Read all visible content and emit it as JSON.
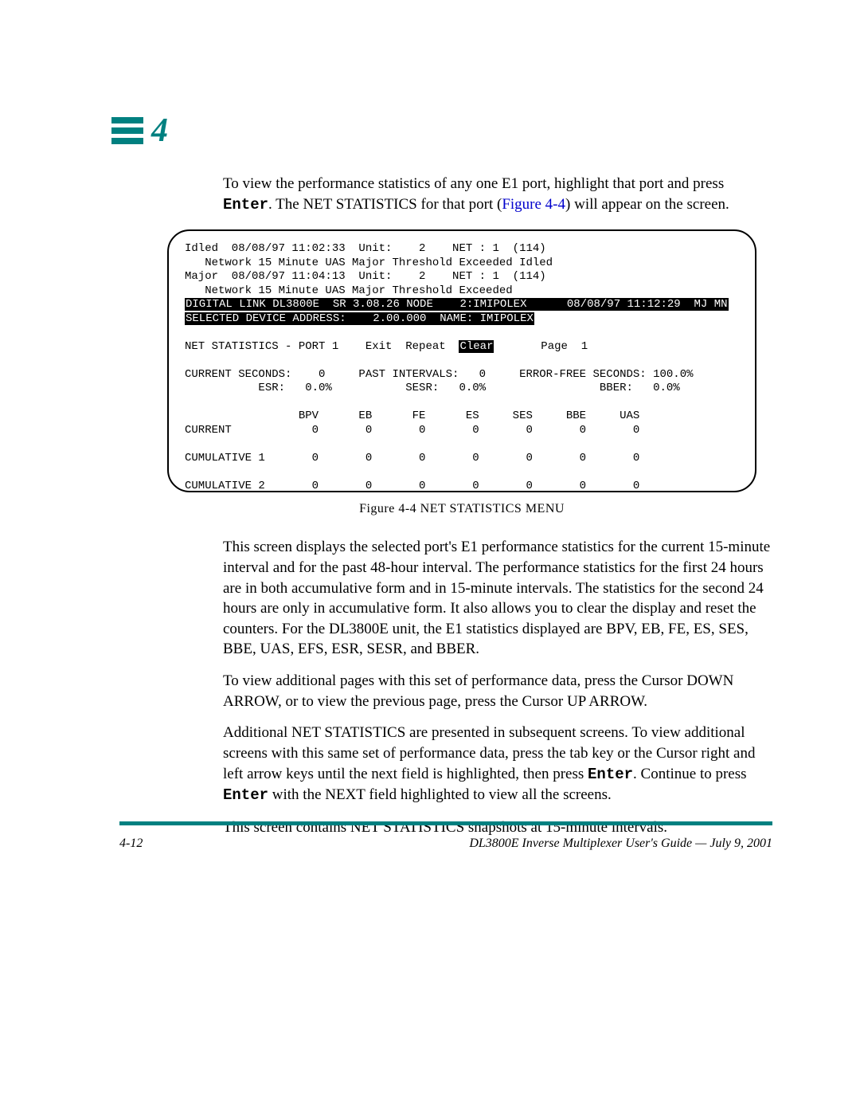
{
  "colors": {
    "accent": "#008080",
    "link": "#0000cc",
    "text": "#000000",
    "bg": "#ffffff"
  },
  "chapter": {
    "number": "4"
  },
  "intro": {
    "pre": "To view the performance statistics of any one E1 port, highlight that port and press ",
    "enter": "Enter",
    "mid": ". The NET STATISTICS for that port (",
    "figref": "Figure 4-4",
    "post": ") will appear on the screen."
  },
  "terminal": {
    "l1": "Idled  08/08/97 11:02:33  Unit:    2    NET : 1  (114)",
    "l2": "   Network 15 Minute UAS Major Threshold Exceeded Idled",
    "l3": "Major  08/08/97 11:04:13  Unit:    2    NET : 1  (114)",
    "l4": "   Network 15 Minute UAS Major Threshold Exceeded",
    "l5a": "DIGITAL LINK DL3800E  SR 3.08.26 NODE    2:IMIPOLEX      08/08/97 11:12:29  MJ MN",
    "l5b": "SELECTED DEVICE ADDRESS:    2.00.000  NAME: IMIPOLEX",
    "l6a": "NET STATISTICS - PORT 1    Exit  Repeat  ",
    "l6b": "Clear",
    "l6c": "       Page  1",
    "l7": "CURRENT SECONDS:    0     PAST INTERVALS:   0     ERROR-FREE SECONDS: 100.0%",
    "l8": "           ESR:   0.0%           SESR:   0.0%                 BBER:   0.0%",
    "hdr": "                 BPV      EB      FE      ES     SES     BBE     UAS",
    "r1": "CURRENT            0       0       0       0       0       0       0",
    "r2": "CUMULATIVE 1       0       0       0       0       0       0       0",
    "r3": "CUMULATIVE 2       0       0       0       0       0       0       0"
  },
  "figure": {
    "caption": "Figure 4-4    NET STATISTICS MENU"
  },
  "para1": "This screen displays the selected port's E1 performance statistics for the current 15-minute interval and for the past 48-hour interval. The performance statistics for the first 24 hours are in both accumulative form and in 15-minute intervals. The statistics for the second 24 hours are only in accumulative form. It also allows you to clear the display and reset the counters. For the DL3800E unit, the E1 statistics displayed are BPV, EB, FE, ES, SES, BBE, UAS, EFS, ESR, SESR, and BBER.",
  "para2": "To view additional pages with this set of performance data, press the Cursor DOWN ARROW, or to view the previous page, press the Cursor UP ARROW.",
  "para3": {
    "a": "Additional NET STATISTICS are presented in subsequent screens. To view additional screens with this same set of performance data, press the tab key or the Cursor right and left arrow keys until the next field is highlighted, then press ",
    "enter1": "Enter",
    "b": ". Continue to press ",
    "enter2": "Enter",
    "c": " with the NEXT field highlighted to view all the screens."
  },
  "para4": "This screen contains NET STATISTICS snapshots at 15-minute intervals.",
  "footer": {
    "page": "4-12",
    "title": "DL3800E Inverse Multiplexer User's Guide — July 9, 2001"
  }
}
